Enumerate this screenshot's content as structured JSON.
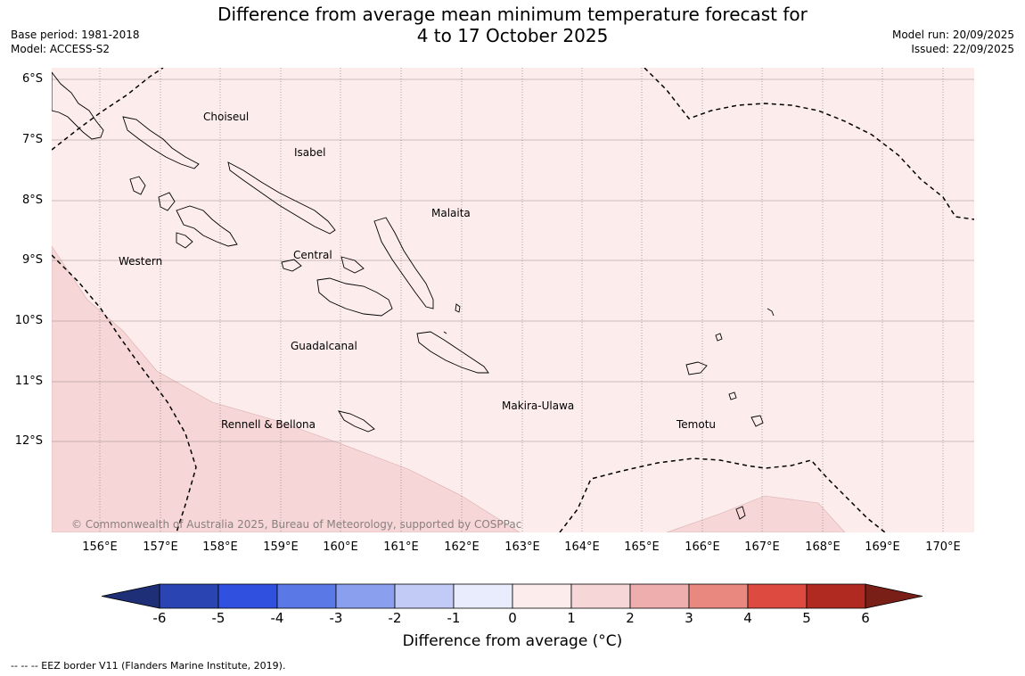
{
  "title": {
    "line1": "Difference from average mean minimum temperature forecast for",
    "line2": "4 to 17 October 2025"
  },
  "meta_left": {
    "base_period": "Base period: 1981-2018",
    "model": "Model: ACCESS-S2"
  },
  "meta_right": {
    "model_run": "Model run: 20/09/2025",
    "issued": "Issued: 22/09/2025"
  },
  "axes": {
    "lat_labels": [
      "6°S",
      "7°S",
      "8°S",
      "9°S",
      "10°S",
      "11°S",
      "12°S"
    ],
    "lon_labels": [
      "156°E",
      "157°E",
      "158°E",
      "159°E",
      "160°E",
      "161°E",
      "162°E",
      "163°E",
      "164°E",
      "165°E",
      "166°E",
      "167°E",
      "168°E",
      "169°E",
      "170°E"
    ]
  },
  "regions": {
    "choiseul": "Choiseul",
    "isabel": "Isabel",
    "malaita": "Malaita",
    "western": "Western",
    "central": "Central",
    "guadalcanal": "Guadalcanal",
    "makira": "Makira-Ulawa",
    "rennell": "Rennell & Bellona",
    "temotu": "Temotu"
  },
  "copyright": "© Commonwealth of Australia 2025, Bureau of Meteorology, supported by COSPPac",
  "colorbar": {
    "ticks": [
      "-6",
      "-5",
      "-4",
      "-3",
      "-2",
      "-1",
      "0",
      "1",
      "2",
      "3",
      "4",
      "5",
      "6"
    ],
    "colors": [
      "#2a44b2",
      "#3050e0",
      "#5a78e6",
      "#8aa0ee",
      "#c2cbf5",
      "#e9ecfc",
      "#fcecec",
      "#f6d6d6",
      "#efaeae",
      "#e8887e",
      "#dd4a40",
      "#b02a22"
    ],
    "under_color": "#1e2f78",
    "over_color": "#7a1f18",
    "label": "Difference from average (°C)"
  },
  "map_colors": {
    "band_0_1": "#fcecec",
    "band_1_2": "#f6d6d6",
    "eez": "#000000",
    "coast": "#000000",
    "grid": "#666666"
  },
  "footnote": "--  --  -- EEZ border V11 (Flanders Marine Institute, 2019)."
}
